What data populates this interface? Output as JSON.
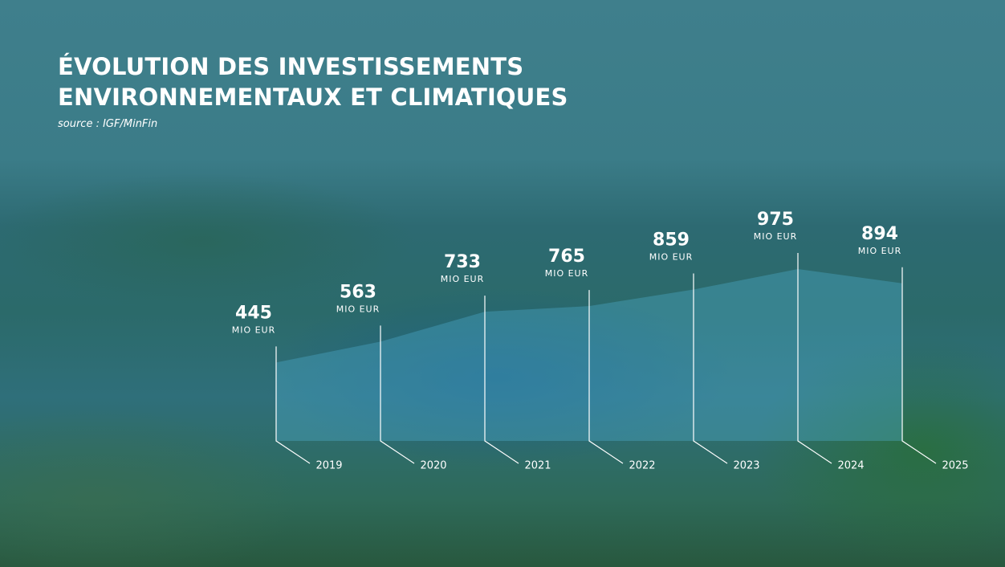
{
  "chart_data": {
    "type": "area",
    "title": "ÉVOLUTION DES INVESTISSEMENTS\nENVIRONNEMENTAUX ET CLIMATIQUES",
    "source": "source : IGF/MinFin",
    "unit": "MIO EUR",
    "categories": [
      "2019",
      "2020",
      "2021",
      "2022",
      "2023",
      "2024",
      "2025"
    ],
    "values": [
      445,
      563,
      733,
      765,
      859,
      975,
      894
    ],
    "color": "#4fb3d4"
  }
}
